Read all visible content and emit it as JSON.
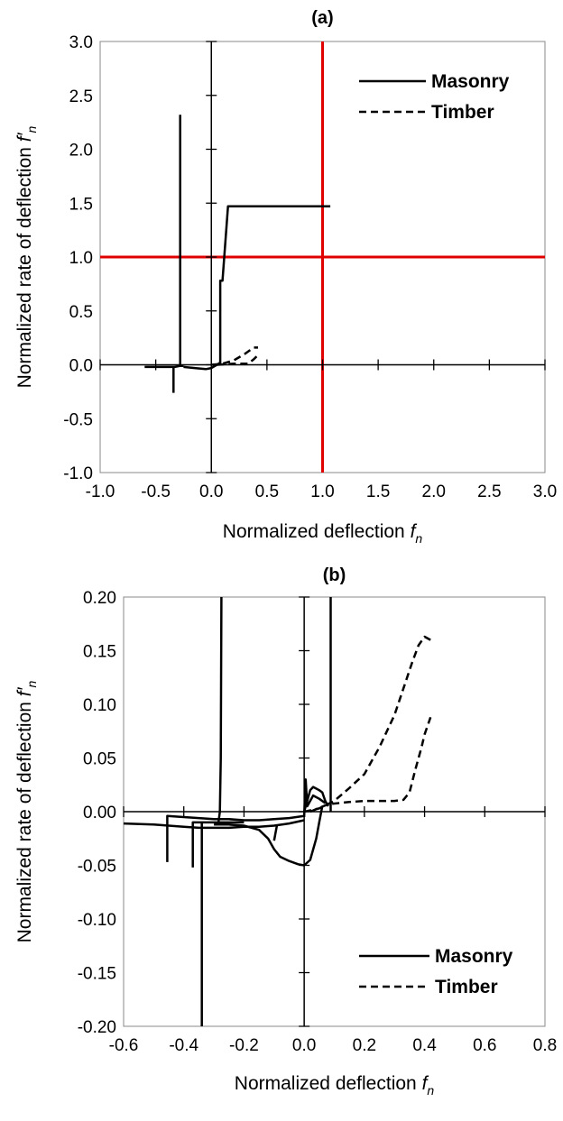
{
  "chart_data": [
    {
      "type": "line",
      "title": "(a)",
      "xlabel": "Normalized deflection",
      "xlabel_var": "f",
      "xlabel_sub": "n",
      "ylabel": "Normalized rate of deflection",
      "ylabel_var": "f′",
      "ylabel_sub": "n",
      "xlim": [
        -1.0,
        3.0
      ],
      "ylim": [
        -1.0,
        3.0
      ],
      "xticks": [
        -1.0,
        -0.5,
        0.0,
        0.5,
        1.0,
        1.5,
        2.0,
        2.5,
        3.0
      ],
      "yticks": [
        -1.0,
        -0.5,
        0.0,
        0.5,
        1.0,
        1.5,
        2.0,
        2.5,
        3.0
      ],
      "xtick_labels": [
        "-1.0",
        "-0.5",
        "0.0",
        "0.5",
        "1.0",
        "1.5",
        "2.0",
        "2.5",
        "3.0"
      ],
      "ytick_labels": [
        "-1.0",
        "-0.5",
        "0.0",
        "0.5",
        "1.0",
        "1.5",
        "2.0",
        "2.5",
        "3.0"
      ],
      "grid": false,
      "legend_position": "top-right",
      "reference_lines": [
        {
          "orientation": "vertical",
          "value": 1.0,
          "color": "#e00000"
        },
        {
          "orientation": "horizontal",
          "value": 1.0,
          "color": "#e00000"
        }
      ],
      "series": [
        {
          "name": "Masonry",
          "style": "solid",
          "segments": [
            [
              [
                -0.6,
                -0.02
              ],
              [
                -0.45,
                -0.02
              ],
              [
                -0.33,
                -0.02
              ],
              [
                -0.28,
                -0.01
              ],
              [
                -0.25,
                -0.01
              ]
            ],
            [
              [
                -0.34,
                -0.02
              ],
              [
                -0.34,
                -0.26
              ]
            ],
            [
              [
                -0.28,
                -0.02
              ],
              [
                -0.28,
                2.32
              ]
            ],
            [
              [
                -0.25,
                -0.02
              ],
              [
                -0.15,
                -0.03
              ],
              [
                -0.05,
                -0.04
              ],
              [
                0.0,
                -0.03
              ],
              [
                0.05,
                0.0
              ],
              [
                0.08,
                0.02
              ]
            ],
            [
              [
                0.08,
                0.0
              ],
              [
                0.08,
                0.78
              ],
              [
                0.1,
                0.78
              ],
              [
                0.15,
                1.47
              ],
              [
                1.07,
                1.47
              ]
            ]
          ]
        },
        {
          "name": "Timber",
          "style": "dashed",
          "segments": [
            [
              [
                0.0,
                0.0
              ],
              [
                0.1,
                0.01
              ],
              [
                0.2,
                0.04
              ],
              [
                0.3,
                0.1
              ],
              [
                0.38,
                0.16
              ],
              [
                0.42,
                0.16
              ]
            ],
            [
              [
                0.05,
                0.0
              ],
              [
                0.2,
                0.01
              ],
              [
                0.33,
                0.01
              ],
              [
                0.38,
                0.05
              ],
              [
                0.42,
                0.09
              ]
            ]
          ]
        }
      ]
    },
    {
      "type": "line",
      "title": "(b)",
      "xlabel": "Normalized deflection",
      "xlabel_var": "f",
      "xlabel_sub": "n",
      "ylabel": "Normalized rate of deflection",
      "ylabel_var": "f′",
      "ylabel_sub": "n",
      "xlim": [
        -0.6,
        0.8
      ],
      "ylim": [
        -0.2,
        0.2
      ],
      "xticks": [
        -0.6,
        -0.4,
        -0.2,
        0.0,
        0.2,
        0.4,
        0.6,
        0.8
      ],
      "yticks": [
        -0.2,
        -0.15,
        -0.1,
        -0.05,
        0.0,
        0.05,
        0.1,
        0.15,
        0.2
      ],
      "xtick_labels": [
        "-0.6",
        "-0.4",
        "-0.2",
        "0.0",
        "0.2",
        "0.4",
        "0.6",
        "0.8"
      ],
      "ytick_labels": [
        "-0.20",
        "-0.15",
        "-0.10",
        "-0.05",
        "0.00",
        "0.05",
        "0.10",
        "0.15",
        "0.20"
      ],
      "grid": false,
      "legend_position": "bottom-right",
      "series": [
        {
          "name": "Masonry",
          "style": "solid",
          "segments": [
            [
              [
                -0.6,
                -0.011
              ],
              [
                -0.5,
                -0.012
              ],
              [
                -0.45,
                -0.013
              ],
              [
                -0.4,
                -0.014
              ],
              [
                -0.35,
                -0.015
              ],
              [
                -0.3,
                -0.015
              ],
              [
                -0.25,
                -0.015
              ],
              [
                -0.2,
                -0.014
              ],
              [
                -0.15,
                -0.014
              ],
              [
                -0.1,
                -0.013
              ],
              [
                -0.05,
                -0.011
              ],
              [
                0.0,
                -0.008
              ]
            ],
            [
              [
                -0.455,
                -0.047
              ],
              [
                -0.455,
                -0.004
              ],
              [
                -0.4,
                -0.005
              ],
              [
                -0.35,
                -0.006
              ],
              [
                -0.3,
                -0.007
              ],
              [
                -0.25,
                -0.007
              ],
              [
                -0.2,
                -0.008
              ],
              [
                -0.15,
                -0.008
              ],
              [
                -0.1,
                -0.007
              ],
              [
                -0.05,
                -0.006
              ],
              [
                0.0,
                -0.004
              ]
            ],
            [
              [
                -0.37,
                -0.052
              ],
              [
                -0.37,
                -0.01
              ],
              [
                -0.3,
                -0.01
              ],
              [
                -0.2,
                -0.01
              ]
            ],
            [
              [
                -0.34,
                -0.2
              ],
              [
                -0.34,
                -0.01
              ]
            ],
            [
              [
                -0.285,
                -0.01
              ],
              [
                -0.28,
                0.0
              ],
              [
                -0.277,
                0.05
              ],
              [
                -0.275,
                0.2
              ]
            ],
            [
              [
                -0.3,
                -0.012
              ],
              [
                -0.25,
                -0.012
              ],
              [
                -0.2,
                -0.013
              ],
              [
                -0.15,
                -0.017
              ],
              [
                -0.12,
                -0.025
              ],
              [
                -0.1,
                -0.035
              ],
              [
                -0.08,
                -0.042
              ],
              [
                -0.05,
                -0.046
              ],
              [
                -0.02,
                -0.049
              ],
              [
                0.0,
                -0.05
              ],
              [
                0.02,
                -0.045
              ],
              [
                0.04,
                -0.025
              ],
              [
                0.05,
                -0.01
              ],
              [
                0.06,
                0.005
              ]
            ],
            [
              [
                -0.1,
                -0.027
              ],
              [
                -0.09,
                -0.012
              ]
            ],
            [
              [
                0.0,
                0.0
              ],
              [
                0.01,
                0.01
              ],
              [
                0.02,
                0.02
              ],
              [
                0.03,
                0.023
              ],
              [
                0.05,
                0.02
              ],
              [
                0.06,
                0.018
              ],
              [
                0.07,
                0.01
              ],
              [
                0.08,
                0.005
              ]
            ],
            [
              [
                0.0,
                -0.005
              ],
              [
                0.005,
                0.03
              ],
              [
                0.01,
                0.005
              ],
              [
                0.03,
                0.015
              ],
              [
                0.05,
                0.012
              ],
              [
                0.07,
                0.008
              ]
            ],
            [
              [
                0.088,
                0.0
              ],
              [
                0.088,
                0.2
              ]
            ]
          ]
        },
        {
          "name": "Timber",
          "style": "dashed",
          "segments": [
            [
              [
                0.0,
                0.0
              ],
              [
                0.05,
                0.003
              ],
              [
                0.1,
                0.01
              ],
              [
                0.15,
                0.022
              ],
              [
                0.2,
                0.035
              ],
              [
                0.25,
                0.06
              ],
              [
                0.3,
                0.09
              ],
              [
                0.33,
                0.115
              ],
              [
                0.36,
                0.14
              ],
              [
                0.38,
                0.155
              ],
              [
                0.4,
                0.163
              ],
              [
                0.42,
                0.16
              ]
            ],
            [
              [
                0.02,
                0.0
              ],
              [
                0.08,
                0.007
              ],
              [
                0.15,
                0.009
              ],
              [
                0.2,
                0.01
              ],
              [
                0.25,
                0.01
              ],
              [
                0.3,
                0.01
              ],
              [
                0.33,
                0.011
              ],
              [
                0.35,
                0.018
              ],
              [
                0.37,
                0.04
              ],
              [
                0.39,
                0.06
              ],
              [
                0.4,
                0.072
              ],
              [
                0.42,
                0.088
              ]
            ]
          ]
        }
      ]
    }
  ]
}
